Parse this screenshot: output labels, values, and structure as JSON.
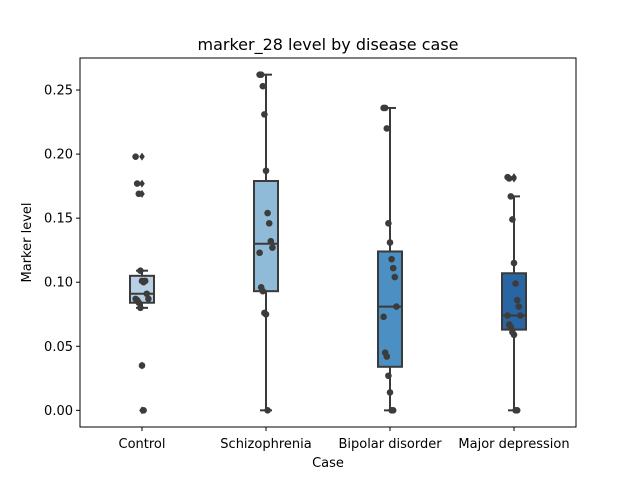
{
  "chart_data": {
    "type": "boxplot",
    "title": "marker_28 level by disease case",
    "xlabel": "Case",
    "ylabel": "Marker level",
    "ylim": [
      -0.013,
      0.275
    ],
    "yticks": [
      0.0,
      0.05,
      0.1,
      0.15,
      0.2,
      0.25
    ],
    "ytick_labels": [
      "0.00",
      "0.05",
      "0.10",
      "0.15",
      "0.20",
      "0.25"
    ],
    "grid": false,
    "categories": [
      "Control",
      "Schizophrenia",
      "Bipolar disorder",
      "Major depression"
    ],
    "colors": [
      "#b8d0e5",
      "#8fbbd9",
      "#4b8fc3",
      "#2a65a3"
    ],
    "groups": [
      {
        "name": "Control",
        "q1": 0.084,
        "median": 0.091,
        "q3": 0.105,
        "whisker_low": 0.08,
        "whisker_high": 0.109,
        "outliers": [
          0.198,
          0.177,
          0.169,
          0.035,
          0.0
        ],
        "points": [
          0.198,
          0.177,
          0.169,
          0.109,
          0.101,
          0.1,
          0.101,
          0.091,
          0.087,
          0.087,
          0.086,
          0.084,
          0.08,
          0.035,
          0.0
        ]
      },
      {
        "name": "Schizophrenia",
        "q1": 0.093,
        "median": 0.13,
        "q3": 0.179,
        "whisker_low": 0.0,
        "whisker_high": 0.262,
        "outliers": [],
        "points": [
          0.262,
          0.262,
          0.253,
          0.231,
          0.187,
          0.154,
          0.146,
          0.132,
          0.127,
          0.123,
          0.096,
          0.093,
          0.076,
          0.075,
          0.0
        ]
      },
      {
        "name": "Bipolar disorder",
        "q1": 0.034,
        "median": 0.081,
        "q3": 0.124,
        "whisker_low": 0.0,
        "whisker_high": 0.236,
        "outliers": [],
        "points": [
          0.236,
          0.236,
          0.22,
          0.146,
          0.131,
          0.118,
          0.111,
          0.104,
          0.081,
          0.073,
          0.045,
          0.042,
          0.027,
          0.014,
          0.0,
          0.0
        ]
      },
      {
        "name": "Major depression",
        "q1": 0.063,
        "median": 0.074,
        "q3": 0.107,
        "whisker_low": 0.0,
        "whisker_high": 0.167,
        "outliers": [
          0.182,
          0.181
        ],
        "points": [
          0.182,
          0.181,
          0.167,
          0.149,
          0.115,
          0.099,
          0.086,
          0.081,
          0.074,
          0.074,
          0.067,
          0.065,
          0.061,
          0.059,
          0.0,
          0.0
        ]
      }
    ]
  }
}
